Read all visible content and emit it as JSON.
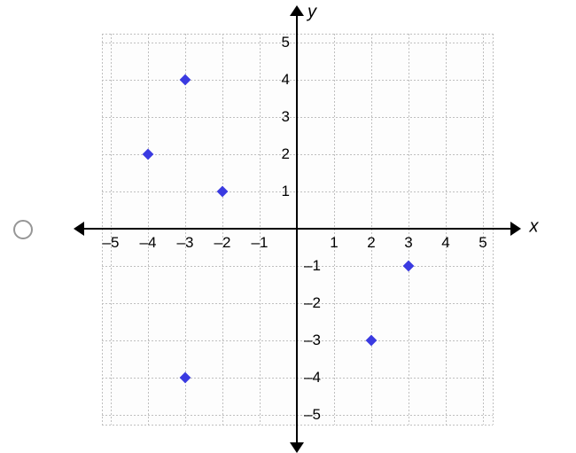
{
  "chart": {
    "type": "scatter",
    "geometry": {
      "originX": 275,
      "originY": 248,
      "unit": 42,
      "gridExtent": 5.25
    },
    "background_color": "#fdfdfd",
    "grid_color": "#bfbfbf",
    "axis_color": "#000000",
    "x_axis_label": "x",
    "y_axis_label": "y",
    "label_fontsize": 20,
    "tick_fontsize": 17,
    "xlim": [
      -5,
      5
    ],
    "ylim": [
      -5,
      5
    ],
    "x_ticks": [
      -5,
      -4,
      -3,
      -2,
      -1,
      1,
      2,
      3,
      4,
      5
    ],
    "y_ticks": [
      -5,
      -4,
      -3,
      -2,
      -1,
      1,
      2,
      3,
      4,
      5
    ],
    "x_tick_labels": [
      "–5",
      "–4",
      "–3",
      "–2",
      "–1",
      "1",
      "2",
      "3",
      "4",
      "5"
    ],
    "y_tick_labels": [
      "–5",
      "–4",
      "–3",
      "–2",
      "–1",
      "1",
      "2",
      "3",
      "4",
      "5"
    ],
    "marker_color": "#3a3ae1",
    "marker_size": 9,
    "points": [
      {
        "x": -3,
        "y": 4
      },
      {
        "x": -4,
        "y": 2
      },
      {
        "x": -2,
        "y": 1
      },
      {
        "x": 3,
        "y": -1
      },
      {
        "x": 2,
        "y": -3
      },
      {
        "x": -3,
        "y": -4
      }
    ]
  }
}
